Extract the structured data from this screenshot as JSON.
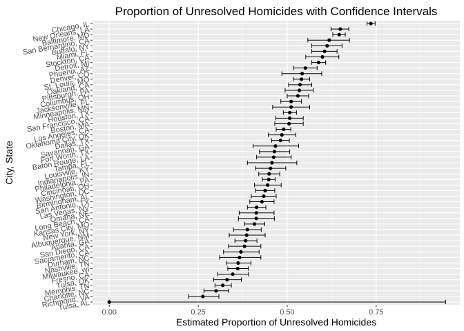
{
  "chart_data": {
    "type": "scatter",
    "title": "Proportion of Unresolved Homicides with Confidence Intervals",
    "xlabel": "Estimated Proportion of Unresolved Homicides",
    "ylabel": "City, State",
    "xlim": [
      -0.047,
      0.985
    ],
    "xticks": [
      0.0,
      0.25,
      0.5,
      0.75
    ],
    "xtick_labels": [
      "0.00",
      "0.25",
      "0.50",
      "0.75"
    ],
    "grid": true,
    "series": [
      {
        "points": [
          {
            "city": "Chicago, IL",
            "estimate": 0.735,
            "low": 0.724,
            "high": 0.747
          },
          {
            "city": "New Orleans, LA",
            "estimate": 0.649,
            "low": 0.623,
            "high": 0.673
          },
          {
            "city": "Baltimore, MD",
            "estimate": 0.646,
            "low": 0.628,
            "high": 0.663
          },
          {
            "city": "San Bernardino, CA",
            "estimate": 0.618,
            "low": 0.558,
            "high": 0.675
          },
          {
            "city": "Buffalo, NY",
            "estimate": 0.612,
            "low": 0.569,
            "high": 0.654
          },
          {
            "city": "Miami, FL",
            "estimate": 0.605,
            "low": 0.569,
            "high": 0.64
          },
          {
            "city": "Stockton, CA",
            "estimate": 0.599,
            "low": 0.552,
            "high": 0.645
          },
          {
            "city": "Detroit, MI",
            "estimate": 0.588,
            "low": 0.569,
            "high": 0.608
          },
          {
            "city": "Phoenix, AZ",
            "estimate": 0.551,
            "low": 0.518,
            "high": 0.584
          },
          {
            "city": "Denver, CO",
            "estimate": 0.542,
            "low": 0.485,
            "high": 0.597
          },
          {
            "city": "St. Louis, MO",
            "estimate": 0.54,
            "low": 0.517,
            "high": 0.563
          },
          {
            "city": "Oakland, CA",
            "estimate": 0.536,
            "low": 0.504,
            "high": 0.569
          },
          {
            "city": "Pittsburgh, PA",
            "estimate": 0.534,
            "low": 0.494,
            "high": 0.573
          },
          {
            "city": "Columbus, OH",
            "estimate": 0.53,
            "low": 0.5,
            "high": 0.56
          },
          {
            "city": "Jacksonville, FL",
            "estimate": 0.511,
            "low": 0.482,
            "high": 0.54
          },
          {
            "city": "Minneapolis, MN",
            "estimate": 0.511,
            "low": 0.459,
            "high": 0.563
          },
          {
            "city": "Houston, TX",
            "estimate": 0.507,
            "low": 0.489,
            "high": 0.526
          },
          {
            "city": "San Francisco, CA",
            "estimate": 0.507,
            "low": 0.468,
            "high": 0.545
          },
          {
            "city": "Boston, MA",
            "estimate": 0.505,
            "low": 0.465,
            "high": 0.545
          },
          {
            "city": "Los Angeles, CA",
            "estimate": 0.49,
            "low": 0.469,
            "high": 0.51
          },
          {
            "city": "Oklahoma City, OK",
            "estimate": 0.485,
            "low": 0.447,
            "high": 0.524
          },
          {
            "city": "Dallas, TX",
            "estimate": 0.481,
            "low": 0.456,
            "high": 0.506
          },
          {
            "city": "Savannah, GA",
            "estimate": 0.467,
            "low": 0.404,
            "high": 0.532
          },
          {
            "city": "Fort Worth, TX",
            "estimate": 0.464,
            "low": 0.422,
            "high": 0.507
          },
          {
            "city": "Baton Rouge, LA",
            "estimate": 0.462,
            "low": 0.414,
            "high": 0.511
          },
          {
            "city": "Tampa, FL",
            "estimate": 0.457,
            "low": 0.388,
            "high": 0.527
          },
          {
            "city": "Louisville, KY",
            "estimate": 0.453,
            "low": 0.411,
            "high": 0.496
          },
          {
            "city": "Indianapolis, IN",
            "estimate": 0.449,
            "low": 0.42,
            "high": 0.479
          },
          {
            "city": "Philadelphia, PA",
            "estimate": 0.448,
            "low": 0.43,
            "high": 0.466
          },
          {
            "city": "Cincinnati, OH",
            "estimate": 0.445,
            "low": 0.408,
            "high": 0.483
          },
          {
            "city": "Washington, DC",
            "estimate": 0.438,
            "low": 0.411,
            "high": 0.465
          },
          {
            "city": "Birmingham, AL",
            "estimate": 0.434,
            "low": 0.399,
            "high": 0.469
          },
          {
            "city": "San Antonio, TX",
            "estimate": 0.429,
            "low": 0.395,
            "high": 0.463
          },
          {
            "city": "Las Vegas, NV",
            "estimate": 0.414,
            "low": 0.388,
            "high": 0.44
          },
          {
            "city": "Omaha, NE",
            "estimate": 0.413,
            "low": 0.365,
            "high": 0.463
          },
          {
            "city": "Long Beach, CA",
            "estimate": 0.413,
            "low": 0.363,
            "high": 0.464
          },
          {
            "city": "Kansas City, MO",
            "estimate": 0.408,
            "low": 0.38,
            "high": 0.437
          },
          {
            "city": "New York, NY",
            "estimate": 0.388,
            "low": 0.349,
            "high": 0.427
          },
          {
            "city": "Albuquerque, NM",
            "estimate": 0.386,
            "low": 0.337,
            "high": 0.438
          },
          {
            "city": "Atlanta, GA",
            "estimate": 0.383,
            "low": 0.353,
            "high": 0.415
          },
          {
            "city": "San Diego, CA",
            "estimate": 0.38,
            "low": 0.335,
            "high": 0.426
          },
          {
            "city": "Sacramento, CA",
            "estimate": 0.37,
            "low": 0.321,
            "high": 0.421
          },
          {
            "city": "Durham, NC",
            "estimate": 0.366,
            "low": 0.31,
            "high": 0.426
          },
          {
            "city": "Nashville, TN",
            "estimate": 0.362,
            "low": 0.329,
            "high": 0.398
          },
          {
            "city": "Milwaukee, wI",
            "estimate": 0.361,
            "low": 0.333,
            "high": 0.391
          },
          {
            "city": "Fresno, CA",
            "estimate": 0.347,
            "low": 0.305,
            "high": 0.391
          },
          {
            "city": "Tulsa, OK",
            "estimate": 0.331,
            "low": 0.293,
            "high": 0.371
          },
          {
            "city": "Memphis, TN",
            "estimate": 0.319,
            "low": 0.297,
            "high": 0.343
          },
          {
            "city": "Charlotte, NC",
            "estimate": 0.3,
            "low": 0.266,
            "high": 0.336
          },
          {
            "city": "Richmond, VA",
            "estimate": 0.263,
            "low": 0.223,
            "high": 0.308
          },
          {
            "city": "Tulsa, AL",
            "estimate": 0.0,
            "low": 0.0,
            "high": 0.945
          }
        ]
      }
    ]
  }
}
